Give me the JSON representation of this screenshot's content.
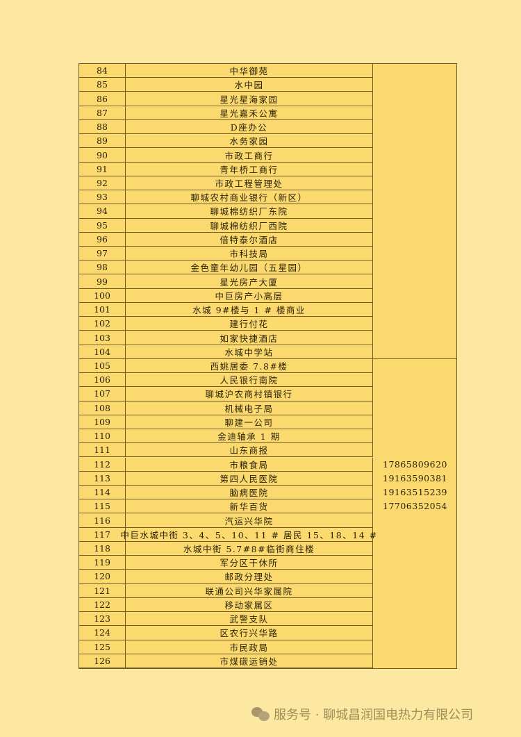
{
  "table": {
    "rows": [
      {
        "num": "84",
        "name": "中华御苑"
      },
      {
        "num": "85",
        "name": "水中园"
      },
      {
        "num": "86",
        "name": "星光星海家园"
      },
      {
        "num": "87",
        "name": "星光嘉禾公寓"
      },
      {
        "num": "88",
        "name": "D座办公"
      },
      {
        "num": "89",
        "name": "水务家园"
      },
      {
        "num": "90",
        "name": "市政工商行"
      },
      {
        "num": "91",
        "name": "青年桥工商行"
      },
      {
        "num": "92",
        "name": "市政工程管理处"
      },
      {
        "num": "93",
        "name": "聊城农村商业银行（新区）"
      },
      {
        "num": "94",
        "name": "聊城棉纺织厂东院"
      },
      {
        "num": "95",
        "name": "聊城棉纺织厂西院"
      },
      {
        "num": "96",
        "name": "倍特泰尔酒店"
      },
      {
        "num": "97",
        "name": "市科技局"
      },
      {
        "num": "98",
        "name": "金色童年幼儿园（五星园）"
      },
      {
        "num": "99",
        "name": "星光房产大厦"
      },
      {
        "num": "100",
        "name": "中巨房产小高层"
      },
      {
        "num": "101",
        "name": "水城 9#楼与 1 # 楼商业"
      },
      {
        "num": "102",
        "name": "建行付花"
      },
      {
        "num": "103",
        "name": "如家快捷酒店"
      },
      {
        "num": "104",
        "name": "水城中学站"
      },
      {
        "num": "105",
        "name": "西姚居委 7.8#楼"
      },
      {
        "num": "106",
        "name": "人民银行南院"
      },
      {
        "num": "107",
        "name": "聊城沪农商村镇银行"
      },
      {
        "num": "108",
        "name": "机械电子局"
      },
      {
        "num": "109",
        "name": "聊建一公司"
      },
      {
        "num": "110",
        "name": "金迪轴承 1 期"
      },
      {
        "num": "111",
        "name": "山东商报"
      },
      {
        "num": "112",
        "name": "市粮食局"
      },
      {
        "num": "113",
        "name": "第四人民医院"
      },
      {
        "num": "114",
        "name": "脑病医院"
      },
      {
        "num": "115",
        "name": "新华百货"
      },
      {
        "num": "116",
        "name": "汽运兴华院"
      },
      {
        "num": "117",
        "name": "中巨水城中街 3、4、5、10、11 # 居民 15、18、14 #"
      },
      {
        "num": "118",
        "name": "水城中街 5.7#8#临街商住楼"
      },
      {
        "num": "119",
        "name": "军分区干休所"
      },
      {
        "num": "120",
        "name": "邮政分理处"
      },
      {
        "num": "121",
        "name": "联通公司兴华家属院"
      },
      {
        "num": "122",
        "name": "移动家属区"
      },
      {
        "num": "123",
        "name": "武警支队"
      },
      {
        "num": "124",
        "name": "区农行兴华路"
      },
      {
        "num": "125",
        "name": "市民政局"
      },
      {
        "num": "126",
        "name": "市煤碳运销处"
      }
    ],
    "groups": [
      {
        "from": "84",
        "to": "104",
        "phones": []
      },
      {
        "from": "105",
        "to": "126",
        "phones": [
          "17865809620",
          "19163590381",
          "19163515239",
          "17706352054"
        ]
      }
    ]
  },
  "footer": {
    "icon": "wechat-icon",
    "text": "服务号 · 聊城昌润国电热力有限公司"
  },
  "colors": {
    "page": "#fde8a2",
    "cell": "#fbd96e",
    "border": "#6e5c22"
  }
}
